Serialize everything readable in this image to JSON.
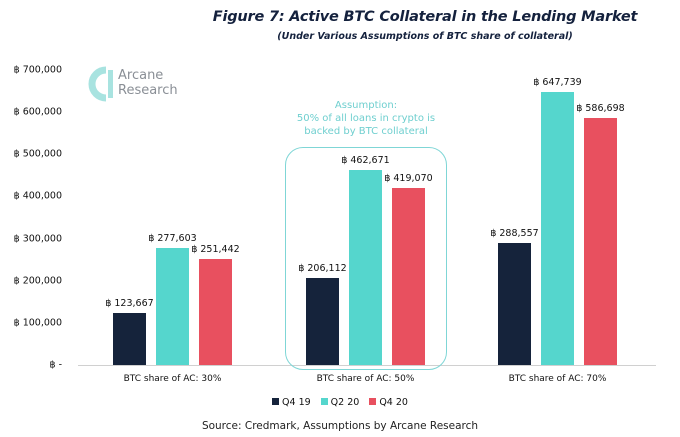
{
  "header": {
    "title": "Figure 7: Active BTC Collateral in the Lending Market",
    "subtitle": "(Under Various Assumptions of BTC share of collateral)"
  },
  "logo": {
    "line1": "Arcane",
    "line2": "Research",
    "accent_color": "#a8e3e0"
  },
  "annotation": {
    "line1": "Assumption:",
    "line2": "50% of all loans in crypto is",
    "line3": "backed by BTC collateral",
    "color": "#6fcfcf"
  },
  "colors": {
    "Q4 19": "#15233b",
    "Q2 20": "#55d6cd",
    "Q4 20": "#e8505f"
  },
  "source": "Source: Credmark, Assumptions by Arcane Research",
  "chart_data": {
    "type": "bar",
    "title": "Figure 7: Active BTC Collateral in the Lending Market",
    "subtitle": "(Under Various Assumptions of BTC share of collateral)",
    "xlabel": "",
    "ylabel": "",
    "categories": [
      "BTC share of AC: 30%",
      "BTC share of AC: 50%",
      "BTC share of AC: 70%"
    ],
    "series": [
      {
        "name": "Q4 19",
        "color": "#15233b",
        "values": [
          123667,
          206112,
          288557
        ],
        "labels": [
          "฿ 123,667",
          "฿ 206,112",
          "฿ 288,557"
        ]
      },
      {
        "name": "Q2 20",
        "color": "#55d6cd",
        "values": [
          277603,
          462671,
          647739
        ],
        "labels": [
          "฿ 277,603",
          "฿ 462,671",
          "฿ 647,739"
        ]
      },
      {
        "name": "Q4 20",
        "color": "#e8505f",
        "values": [
          251442,
          419070,
          586698
        ],
        "labels": [
          "฿ 251,442",
          "฿ 419,070",
          "฿ 586,698"
        ]
      }
    ],
    "yticks": [
      "฿ -",
      "฿ 100,000",
      "฿ 200,000",
      "฿ 300,000",
      "฿ 400,000",
      "฿ 500,000",
      "฿ 600,000",
      "฿ 700,000"
    ],
    "ylim": [
      0,
      700000
    ],
    "grid": false,
    "legend_position": "bottom",
    "annotation": "Assumption: 50% of all loans in crypto is backed by BTC collateral (highlights 50% group)",
    "source": "Source: Credmark, Assumptions by Arcane Research"
  }
}
